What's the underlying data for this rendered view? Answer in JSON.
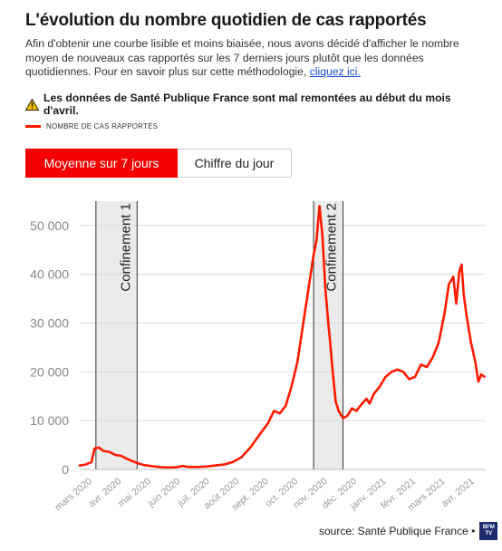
{
  "title": "L'évolution du nombre quotidien de cas rapportés",
  "intro": {
    "text": "Afin d'obtenir une courbe lisible et moins biaisée, nous avons décidé d'afficher le nombre moyen de nouveaux cas rapportés sur les 7 derniers jours plutôt que les données quotidiennes. Pour en savoir plus sur cette méthodologie, ",
    "link": "cliquez ici."
  },
  "warning": {
    "icon": "warning-triangle-icon",
    "text": "Les données de Santé Publique France sont mal remontées au début du mois d'avril."
  },
  "tabs": [
    {
      "label": "Moyenne sur 7 jours",
      "active": true
    },
    {
      "label": "Chiffre du jour",
      "active": false
    }
  ],
  "source": "source: Santé Publique France •",
  "logo": {
    "text": "BFM TV"
  },
  "colors": {
    "line": "#ff1a00",
    "tab_active": "#f30000",
    "band": "#ebebeb"
  },
  "chart_data": {
    "type": "line",
    "title": "",
    "xlabel": "",
    "ylabel": "",
    "ylim": [
      0,
      55000
    ],
    "yticks": [
      0,
      10000,
      20000,
      30000,
      40000,
      50000
    ],
    "ytick_labels": [
      "0",
      "10 000",
      "20 000",
      "30 000",
      "40 000",
      "50 000"
    ],
    "grid": true,
    "legend": "top-left",
    "x_ticks": [
      {
        "label": "mars 2020",
        "month": 0
      },
      {
        "label": "avr. 2020",
        "month": 1
      },
      {
        "label": "mai 2020",
        "month": 2
      },
      {
        "label": "juin 2020",
        "month": 3
      },
      {
        "label": "juil. 2020",
        "month": 4
      },
      {
        "label": "août 2020",
        "month": 5
      },
      {
        "label": "sept. 2020",
        "month": 6
      },
      {
        "label": "oct. 2020",
        "month": 7
      },
      {
        "label": "nov. 2020",
        "month": 8
      },
      {
        "label": "déc. 2020",
        "month": 9
      },
      {
        "label": "janv. 2021",
        "month": 10
      },
      {
        "label": "févr. 2021",
        "month": 11
      },
      {
        "label": "mars 2021",
        "month": 12
      },
      {
        "label": "avr. 2021",
        "month": 13
      }
    ],
    "bands": [
      {
        "label": "Confinement 1",
        "start_month": 0.55,
        "end_month": 1.95
      },
      {
        "label": "Confinement 2",
        "start_month": 7.95,
        "end_month": 8.95
      }
    ],
    "series": [
      {
        "name": "NOMBRE DE CAS RAPPORTÉS",
        "points": [
          [
            0.0,
            800
          ],
          [
            0.2,
            1000
          ],
          [
            0.4,
            1500
          ],
          [
            0.5,
            4300
          ],
          [
            0.65,
            4500
          ],
          [
            0.8,
            3800
          ],
          [
            1.0,
            3600
          ],
          [
            1.2,
            3000
          ],
          [
            1.4,
            2800
          ],
          [
            1.6,
            2200
          ],
          [
            1.8,
            1700
          ],
          [
            2.0,
            1200
          ],
          [
            2.2,
            900
          ],
          [
            2.4,
            700
          ],
          [
            2.6,
            550
          ],
          [
            2.8,
            450
          ],
          [
            3.0,
            400
          ],
          [
            3.3,
            450
          ],
          [
            3.5,
            700
          ],
          [
            3.7,
            500
          ],
          [
            4.0,
            500
          ],
          [
            4.3,
            600
          ],
          [
            4.6,
            800
          ],
          [
            4.9,
            1000
          ],
          [
            5.2,
            1500
          ],
          [
            5.5,
            2500
          ],
          [
            5.8,
            4500
          ],
          [
            6.1,
            7000
          ],
          [
            6.4,
            9500
          ],
          [
            6.6,
            12000
          ],
          [
            6.8,
            11500
          ],
          [
            7.0,
            13000
          ],
          [
            7.2,
            17000
          ],
          [
            7.4,
            22000
          ],
          [
            7.6,
            30000
          ],
          [
            7.8,
            38000
          ],
          [
            7.95,
            44000
          ],
          [
            8.05,
            47000
          ],
          [
            8.15,
            54000
          ],
          [
            8.25,
            48000
          ],
          [
            8.35,
            37000
          ],
          [
            8.45,
            30000
          ],
          [
            8.5,
            27000
          ],
          [
            8.6,
            20000
          ],
          [
            8.7,
            14000
          ],
          [
            8.8,
            12000
          ],
          [
            8.95,
            10500
          ],
          [
            9.1,
            11000
          ],
          [
            9.25,
            12500
          ],
          [
            9.4,
            12000
          ],
          [
            9.6,
            13500
          ],
          [
            9.75,
            14500
          ],
          [
            9.85,
            13500
          ],
          [
            10.0,
            15500
          ],
          [
            10.2,
            17000
          ],
          [
            10.4,
            19000
          ],
          [
            10.6,
            20000
          ],
          [
            10.8,
            20500
          ],
          [
            11.0,
            20000
          ],
          [
            11.2,
            18500
          ],
          [
            11.4,
            19000
          ],
          [
            11.6,
            21500
          ],
          [
            11.8,
            21000
          ],
          [
            12.0,
            23000
          ],
          [
            12.2,
            26000
          ],
          [
            12.4,
            32000
          ],
          [
            12.55,
            38000
          ],
          [
            12.7,
            39500
          ],
          [
            12.8,
            34000
          ],
          [
            12.9,
            40500
          ],
          [
            12.98,
            42000
          ],
          [
            13.05,
            36000
          ],
          [
            13.15,
            31500
          ],
          [
            13.3,
            26000
          ],
          [
            13.45,
            22000
          ],
          [
            13.55,
            18000
          ],
          [
            13.65,
            19500
          ],
          [
            13.75,
            19000
          ]
        ]
      }
    ]
  }
}
